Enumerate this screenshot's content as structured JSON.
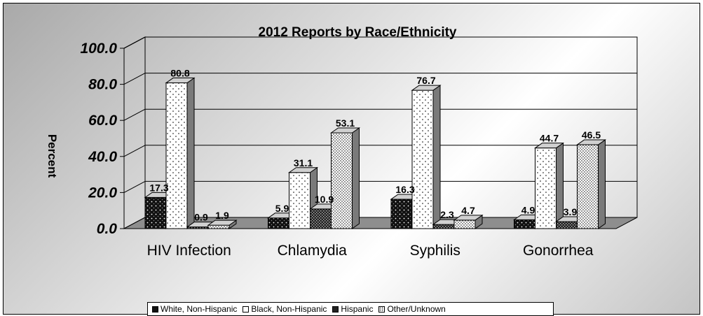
{
  "chart_data": {
    "type": "bar",
    "title": "2012 Reports by Race/Ethnicity",
    "ylabel": "Percent",
    "xlabel": "",
    "ylim": [
      0,
      100
    ],
    "yticks": [
      "0.0",
      "20.0",
      "40.0",
      "60.0",
      "80.0",
      "100.0"
    ],
    "categories": [
      "HIV Infection",
      "Chlamydia",
      "Syphilis",
      "Gonorrhea"
    ],
    "series": [
      {
        "name": "White, Non-Hispanic",
        "values": [
          17.3,
          5.9,
          16.3,
          4.9
        ],
        "labels": [
          "17.3",
          "5.9",
          "16.3",
          "4.9"
        ],
        "pattern": "dark-dots"
      },
      {
        "name": "Black, Non-Hispanic",
        "values": [
          80.8,
          31.1,
          76.7,
          44.7
        ],
        "labels": [
          "80.8",
          "31.1",
          "76.7",
          "44.7"
        ],
        "pattern": "white-sparse-dots"
      },
      {
        "name": "Hispanic",
        "values": [
          0.9,
          10.9,
          2.3,
          3.9
        ],
        "labels": [
          "0.9",
          "10.9",
          "2.3",
          "3.9"
        ],
        "pattern": "dark-checker"
      },
      {
        "name": "Other/Unknown",
        "values": [
          1.9,
          53.1,
          4.7,
          46.5
        ],
        "labels": [
          "1.9",
          "53.1",
          "4.7",
          "46.5"
        ],
        "pattern": "white-dense-dots"
      }
    ],
    "grid": true,
    "three_d": true,
    "legend_position": "bottom"
  }
}
